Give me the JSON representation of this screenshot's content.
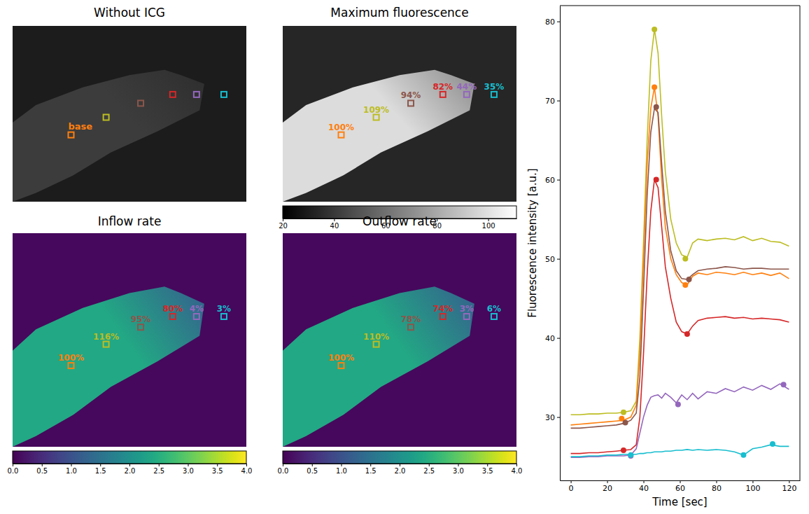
{
  "chart_data": [
    {
      "type": "image",
      "title": "Without ICG",
      "colors": [
        "#ff7f0e",
        "#bcbd22",
        "#8c564b",
        "#d62728",
        "#9467bd",
        "#17becf"
      ],
      "labels": [
        "base"
      ]
    },
    {
      "type": "image",
      "title": "Maximum fluorescence",
      "color": "gray",
      "colors": [
        "#ff7f0e",
        "#bcbd22",
        "#8c564b",
        "#d62728",
        "#9467bd",
        "#17becf"
      ],
      "values": [
        100,
        109,
        94,
        82,
        44,
        35
      ],
      "value_labels": [
        "100%",
        "109%",
        "94%",
        "82%",
        "44%",
        "35%"
      ],
      "data_labels": true,
      "colorbar": {
        "range": [
          20,
          111
        ],
        "ticks": [
          20,
          40,
          60,
          80,
          100
        ]
      }
    },
    {
      "type": "image",
      "title": "Inflow rate",
      "color": "viridis",
      "colors": [
        "#ff7f0e",
        "#bcbd22",
        "#8c564b",
        "#d62728",
        "#9467bd",
        "#17becf"
      ],
      "values": [
        100,
        116,
        95,
        80,
        4,
        3
      ],
      "value_labels": [
        "100%",
        "116%",
        "95%",
        "80%",
        "4%",
        "3%"
      ],
      "data_labels": true,
      "colorbar": {
        "range": [
          0,
          4
        ],
        "ticks": [
          {
            "value": 0,
            "label": "0.0"
          },
          {
            "value": 0.5,
            "label": "0.5"
          },
          {
            "value": 1,
            "label": "1.0"
          },
          {
            "value": 1.5,
            "label": "1.5"
          },
          {
            "value": 2,
            "label": "2.0"
          },
          {
            "value": 2.5,
            "label": "2.5"
          },
          {
            "value": 3,
            "label": "3.0"
          },
          {
            "value": 3.5,
            "label": "3.5"
          },
          {
            "value": 4,
            "label": "4.0"
          }
        ]
      }
    },
    {
      "type": "image",
      "title": "Outflow rate",
      "color": "viridis",
      "colors": [
        "#ff7f0e",
        "#bcbd22",
        "#8c564b",
        "#d62728",
        "#9467bd",
        "#17becf"
      ],
      "values": [
        100,
        110,
        78,
        74,
        3,
        6
      ],
      "value_labels": [
        "100%",
        "110%",
        "78%",
        "74%",
        "3%",
        "6%"
      ],
      "data_labels": true,
      "colorbar": {
        "range": [
          0,
          4
        ],
        "ticks": [
          {
            "value": 0,
            "label": "0.0"
          },
          {
            "value": 0.5,
            "label": "0.5"
          },
          {
            "value": 1,
            "label": "1.0"
          },
          {
            "value": 1.5,
            "label": "1.5"
          },
          {
            "value": 2,
            "label": "2.0"
          },
          {
            "value": 2.5,
            "label": "2.5"
          },
          {
            "value": 3,
            "label": "3.0"
          },
          {
            "value": 3.5,
            "label": "3.5"
          },
          {
            "value": 4,
            "label": "4.0"
          }
        ]
      }
    },
    {
      "type": "line",
      "xlabel": "Time [sec]",
      "ylabel": "Fluorescence intensity [a.u.]",
      "x": [
        0,
        5,
        10,
        15,
        20,
        25,
        29,
        33,
        36,
        38,
        40,
        42,
        44,
        46,
        48,
        50,
        52,
        55,
        58,
        61,
        64,
        67,
        70,
        75,
        80,
        85,
        90,
        95,
        100,
        105,
        110,
        115,
        120
      ],
      "xlim": [
        -6,
        126
      ],
      "ylim": [
        22,
        82
      ],
      "xticks": [
        0,
        20,
        40,
        60,
        80,
        100,
        120
      ],
      "yticks": [
        30,
        40,
        50,
        60,
        70,
        80
      ],
      "grid": false,
      "series": [
        {
          "color": "#bcbd22",
          "values": [
            30.3,
            30.3,
            30.4,
            30.4,
            30.5,
            30.5,
            30.6,
            30.8,
            32,
            40,
            52,
            65,
            75,
            79,
            76,
            68,
            61,
            55,
            52,
            50.5,
            50.2,
            52,
            52.5,
            52.3,
            52.5,
            52.6,
            52.4,
            52.8,
            52.3,
            52.6,
            52.2,
            52.1,
            51.6
          ]
        },
        {
          "color": "#ff7f0e",
          "values": [
            29,
            29.1,
            29.2,
            29.3,
            29.4,
            29.5,
            29.6,
            30,
            31.5,
            38,
            50,
            62,
            69,
            71.7,
            68,
            60,
            54,
            50,
            48,
            47,
            46.7,
            47.8,
            48.2,
            48,
            48.3,
            48.2,
            48,
            48.3,
            48,
            48.2,
            47.9,
            48.2,
            47.5
          ]
        },
        {
          "color": "#8c564b",
          "values": [
            28.6,
            28.6,
            28.7,
            28.8,
            28.9,
            29,
            29.2,
            29.6,
            30.5,
            35,
            46,
            58,
            66,
            69,
            68.5,
            62,
            56,
            51,
            48.5,
            47.5,
            47.4,
            48,
            48.5,
            48.7,
            48.8,
            49,
            48.9,
            48.7,
            48.8,
            48.8,
            48.7,
            48.7,
            48.7
          ]
        },
        {
          "color": "#d62728",
          "values": [
            25.4,
            25.4,
            25.5,
            25.5,
            25.6,
            25.7,
            25.8,
            25.9,
            26.5,
            30,
            38,
            48,
            56,
            60,
            59,
            54,
            49,
            45,
            42,
            40.8,
            40.5,
            41.5,
            42.2,
            42.5,
            42.6,
            42.7,
            42.5,
            42.6,
            42.4,
            42.5,
            42.4,
            42.3,
            42
          ]
        },
        {
          "color": "#9467bd",
          "values": [
            24.9,
            24.9,
            25,
            25,
            25.1,
            25.1,
            25.1,
            25.2,
            26,
            28,
            30,
            31.5,
            32.5,
            32.7,
            32.8,
            32.4,
            33,
            32.5,
            31.8,
            32.8,
            32.2,
            33,
            32.3,
            33.2,
            33,
            33.6,
            33.2,
            33.8,
            33.4,
            34,
            33.5,
            34.2,
            33.5
          ]
        },
        {
          "color": "#17becf",
          "values": [
            25,
            25,
            25.1,
            25.1,
            25.2,
            25.2,
            25.3,
            25.3,
            25.3,
            25.4,
            25.4,
            25.5,
            25.5,
            25.6,
            25.6,
            25.6,
            25.7,
            25.7,
            25.8,
            25.8,
            25.9,
            25.8,
            25.9,
            25.8,
            25.9,
            25.8,
            25.6,
            25.2,
            26,
            26.2,
            26.5,
            26.3,
            26.3
          ]
        },
        {
          "type": "scatter",
          "marker": "circle",
          "color": "#bcbd22",
          "x": [
            29,
            46,
            63
          ],
          "values": [
            30.6,
            79,
            50
          ]
        },
        {
          "type": "scatter",
          "marker": "circle",
          "color": "#ff7f0e",
          "x": [
            28,
            46,
            63
          ],
          "values": [
            29.8,
            71.7,
            46.7
          ]
        },
        {
          "type": "scatter",
          "marker": "circle",
          "color": "#8c564b",
          "x": [
            30,
            47,
            65
          ],
          "values": [
            29.3,
            69.2,
            47.4
          ]
        },
        {
          "type": "scatter",
          "marker": "circle",
          "color": "#d62728",
          "x": [
            29,
            47,
            64
          ],
          "values": [
            25.8,
            60,
            40.5
          ]
        },
        {
          "type": "scatter",
          "marker": "circle",
          "color": "#9467bd",
          "x": [
            33,
            59,
            117
          ],
          "values": [
            25.1,
            31.6,
            34.1
          ]
        },
        {
          "type": "scatter",
          "marker": "circle",
          "color": "#17becf",
          "x": [
            33,
            95,
            111
          ],
          "values": [
            25.2,
            25.2,
            26.6
          ]
        }
      ]
    }
  ]
}
